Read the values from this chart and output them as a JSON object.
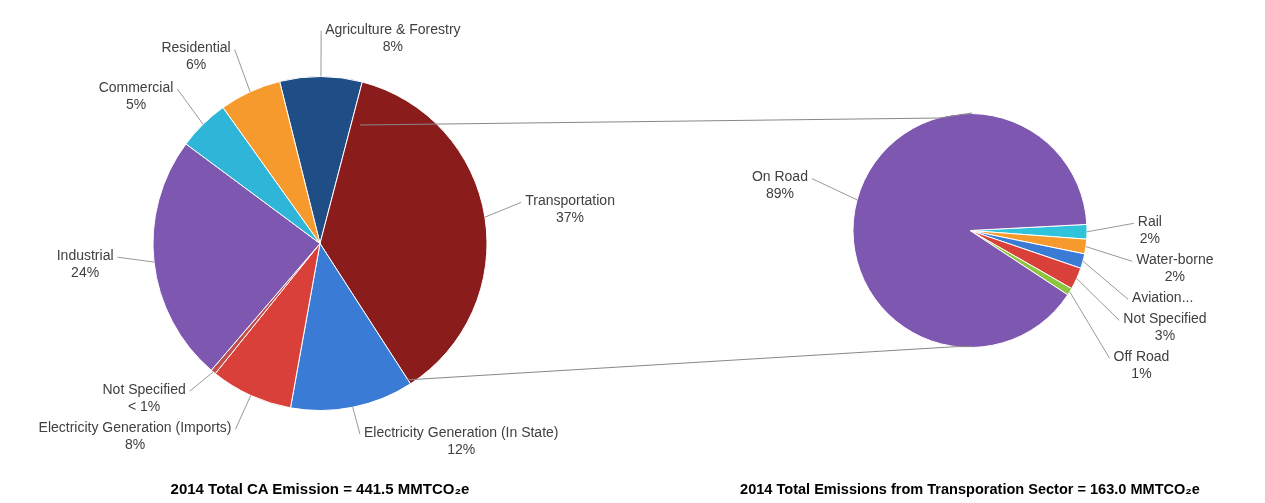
{
  "chart_data": [
    {
      "type": "pie",
      "title": "2014 Total CA Emission = 441.5 MMTCO₂e",
      "categories": [
        "Agriculture & Forestry",
        "Transportation",
        "Electricity Generation (In State)",
        "Electricity Generation (Imports)",
        "Not Specified",
        "Industrial",
        "Commercial",
        "Residential"
      ],
      "values": [
        8,
        37,
        12,
        8,
        0.5,
        24,
        5,
        6
      ],
      "value_labels": [
        "8%",
        "37%",
        "12%",
        "8%",
        "< 1%",
        "24%",
        "5%",
        "6%"
      ],
      "colors": [
        "#1f4e87",
        "#8b1c1c",
        "#3a7bd5",
        "#d9403a",
        "#c0504d",
        "#7e57b0",
        "#2fb5d8",
        "#f79a2e"
      ]
    },
    {
      "type": "pie",
      "title": "2014 Total Emissions from Transporation Sector = 163.0 MMTCO₂e",
      "categories": [
        "Rail",
        "Water-borne",
        "Aviation...",
        "Not Specified",
        "Off Road",
        "On Road"
      ],
      "values": [
        2,
        2,
        2,
        3,
        1,
        89
      ],
      "value_labels": [
        "2%",
        "2%",
        null,
        "3%",
        "1%",
        "89%"
      ],
      "colors": [
        "#2fc4dc",
        "#f79a2e",
        "#3a7bd5",
        "#d9403a",
        "#8cc63f",
        "#7e57b0"
      ]
    }
  ]
}
